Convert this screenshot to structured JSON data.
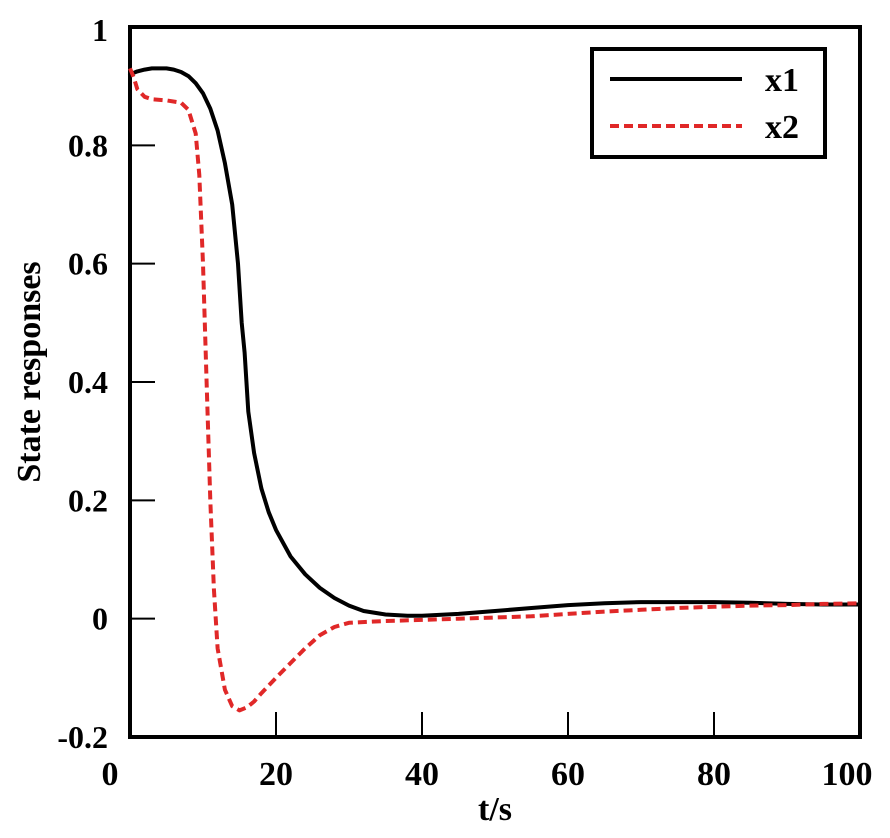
{
  "chart_data": {
    "type": "line",
    "title": "",
    "xlabel": "t/s",
    "ylabel": "State responses",
    "xlim": [
      0,
      100
    ],
    "ylim": [
      -0.2,
      1
    ],
    "x_ticks": [
      0,
      20,
      40,
      60,
      80,
      100
    ],
    "x_tick_labels": [
      "0",
      "20",
      "40",
      "60",
      "80",
      "100"
    ],
    "y_ticks": [
      -0.2,
      0,
      0.2,
      0.4,
      0.6,
      0.8,
      1
    ],
    "y_tick_labels": [
      "-0.2",
      "0",
      "0.2",
      "0.4",
      "0.6",
      "0.8",
      "1"
    ],
    "grid": false,
    "legend_position": "top-right",
    "series": [
      {
        "name": "x1",
        "color": "#000000",
        "style": "solid",
        "points": [
          [
            0,
            0.92
          ],
          [
            1,
            0.925
          ],
          [
            2,
            0.928
          ],
          [
            3,
            0.93
          ],
          [
            4,
            0.93
          ],
          [
            5,
            0.93
          ],
          [
            6,
            0.928
          ],
          [
            7,
            0.924
          ],
          [
            8,
            0.917
          ],
          [
            9,
            0.905
          ],
          [
            10,
            0.888
          ],
          [
            11,
            0.862
          ],
          [
            12,
            0.825
          ],
          [
            13,
            0.77
          ],
          [
            14,
            0.7
          ],
          [
            14.8,
            0.6
          ],
          [
            15.3,
            0.5
          ],
          [
            15.7,
            0.45
          ],
          [
            16.2,
            0.35
          ],
          [
            17,
            0.28
          ],
          [
            18,
            0.22
          ],
          [
            19,
            0.18
          ],
          [
            20,
            0.15
          ],
          [
            22,
            0.105
          ],
          [
            24,
            0.075
          ],
          [
            26,
            0.052
          ],
          [
            28,
            0.035
          ],
          [
            30,
            0.022
          ],
          [
            32,
            0.013
          ],
          [
            35,
            0.007
          ],
          [
            38,
            0.005
          ],
          [
            40,
            0.005
          ],
          [
            45,
            0.008
          ],
          [
            50,
            0.013
          ],
          [
            55,
            0.018
          ],
          [
            60,
            0.023
          ],
          [
            65,
            0.026
          ],
          [
            70,
            0.028
          ],
          [
            75,
            0.028
          ],
          [
            80,
            0.028
          ],
          [
            85,
            0.027
          ],
          [
            90,
            0.025
          ],
          [
            95,
            0.024
          ],
          [
            100,
            0.024
          ]
        ]
      },
      {
        "name": "x2",
        "color": "#e02828",
        "style": "dashed",
        "points": [
          [
            0,
            0.93
          ],
          [
            0.5,
            0.915
          ],
          [
            1,
            0.895
          ],
          [
            2,
            0.882
          ],
          [
            3,
            0.878
          ],
          [
            5,
            0.876
          ],
          [
            7,
            0.872
          ],
          [
            8,
            0.86
          ],
          [
            9,
            0.82
          ],
          [
            9.5,
            0.75
          ],
          [
            10,
            0.6
          ],
          [
            10.5,
            0.4
          ],
          [
            11,
            0.2
          ],
          [
            11.5,
            0.05
          ],
          [
            12,
            -0.05
          ],
          [
            13,
            -0.12
          ],
          [
            14,
            -0.148
          ],
          [
            15,
            -0.155
          ],
          [
            16,
            -0.15
          ],
          [
            17,
            -0.14
          ],
          [
            18,
            -0.126
          ],
          [
            20,
            -0.1
          ],
          [
            22,
            -0.075
          ],
          [
            24,
            -0.05
          ],
          [
            26,
            -0.028
          ],
          [
            28,
            -0.014
          ],
          [
            30,
            -0.007
          ],
          [
            35,
            -0.004
          ],
          [
            40,
            -0.002
          ],
          [
            45,
            0.0
          ],
          [
            50,
            0.002
          ],
          [
            55,
            0.004
          ],
          [
            60,
            0.008
          ],
          [
            65,
            0.012
          ],
          [
            70,
            0.015
          ],
          [
            75,
            0.018
          ],
          [
            80,
            0.02
          ],
          [
            85,
            0.022
          ],
          [
            90,
            0.023
          ],
          [
            95,
            0.025
          ],
          [
            100,
            0.026
          ]
        ]
      }
    ]
  }
}
